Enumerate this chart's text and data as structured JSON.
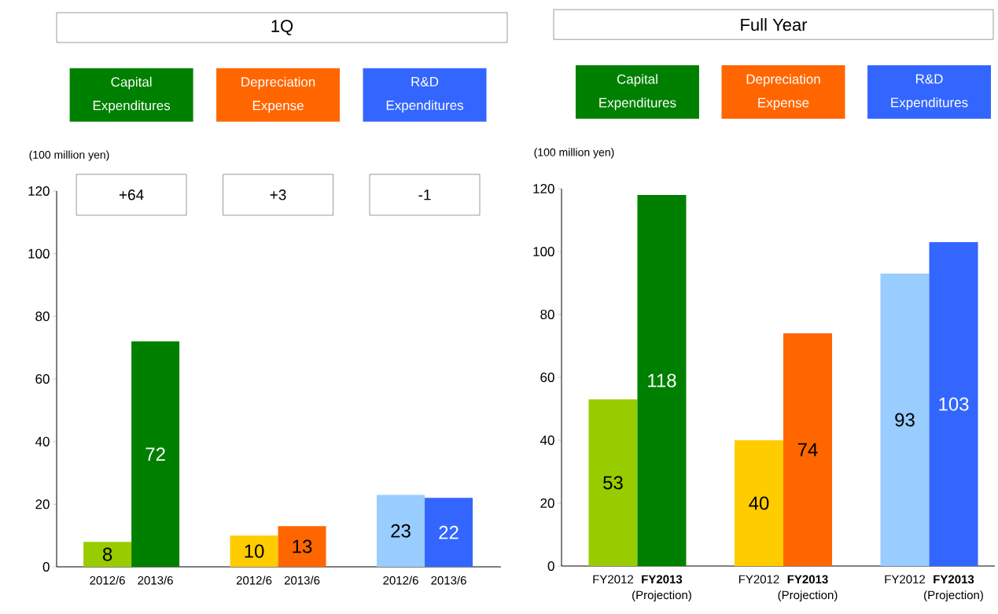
{
  "chart_data": [
    {
      "type": "bar",
      "title": "1Q",
      "ylabel": "(100 million yen)",
      "categories": [
        "Capital Expenditures",
        "Depreciation Expense",
        "R&D Expenditures"
      ],
      "series": [
        {
          "name": "2012/6",
          "colors": [
            "#99cc00",
            "#ffcc00",
            "#99ccff"
          ],
          "values": [
            8,
            10,
            23
          ]
        },
        {
          "name": "2013/6",
          "colors": [
            "#008000",
            "#ff6600",
            "#3366ff"
          ],
          "values": [
            72,
            13,
            22
          ]
        }
      ],
      "ylim": [
        0,
        120
      ],
      "yticks": [
        0,
        20,
        40,
        60,
        80,
        100,
        120
      ],
      "data_labels": true,
      "annotations": [
        "+64",
        "+3",
        "-1"
      ]
    },
    {
      "type": "bar",
      "title": "Full Year",
      "ylabel": "(100 million yen)",
      "categories": [
        "Capital Expenditures",
        "Depreciation Expense",
        "R&D Expenditures"
      ],
      "series": [
        {
          "name": "FY2012",
          "colors": [
            "#99cc00",
            "#ffcc00",
            "#99ccff"
          ],
          "values": [
            53,
            40,
            93
          ]
        },
        {
          "name": "**FY2013** (Projection)",
          "colors": [
            "#008000",
            "#ff6600",
            "#3366ff"
          ],
          "values": [
            118,
            74,
            103
          ]
        }
      ],
      "ylim": [
        0,
        120
      ],
      "yticks": [
        0,
        20,
        40,
        60,
        80,
        100,
        120
      ],
      "data_labels": true
    }
  ]
}
